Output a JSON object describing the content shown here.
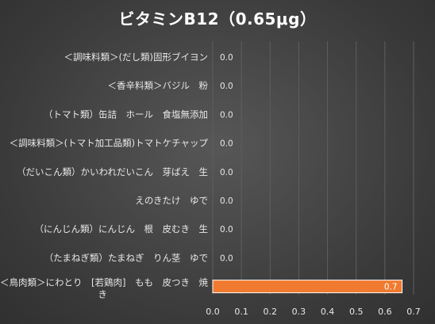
{
  "chart_data": {
    "type": "bar",
    "orientation": "horizontal",
    "title": "ビタミンB12（0.65μg）",
    "categories": [
      "＜調味料類＞(だし類)固形ブイヨン",
      "＜香辛料類＞バジル　粉",
      "（トマト類）缶詰　ホール　食塩無添加",
      "＜調味料類＞(トマト加工品類)トマトケチャップ",
      "（だいこん類）かいわれだいこん　芽ばえ　生",
      "えのきたけ　ゆで",
      "（にんじん類）にんじん　根　皮むき　生",
      "（たまねぎ類）たまねぎ　りん茎　ゆで",
      "＜鳥肉類＞にわとり　[若鶏肉]　もも　皮つき　焼き"
    ],
    "category_lines": [
      [
        "＜調味料類＞(だし類)固形ブイヨン"
      ],
      [
        "＜香辛料類＞バジル　粉"
      ],
      [
        "（トマト類）缶詰　ホール　食塩無添加"
      ],
      [
        "＜調味料類＞(トマト加工品類)トマトケチャップ"
      ],
      [
        "（だいこん類）かいわれだいこん　芽ばえ　生"
      ],
      [
        "えのきたけ　ゆで"
      ],
      [
        "（にんじん類）にんじん　根　皮むき　生"
      ],
      [
        "（たまねぎ類）たまねぎ　りん茎　ゆで"
      ],
      [
        "＜鳥肉類＞にわとり　[若鶏肉]　もも　皮つき　焼",
        "き"
      ]
    ],
    "values": [
      0,
      0,
      0,
      0,
      0,
      0,
      0,
      0,
      0.66
    ],
    "data_labels": [
      "0.0",
      "0.0",
      "0.0",
      "0.0",
      "0.0",
      "0.0",
      "0.0",
      "0.0",
      "0.7"
    ],
    "xlim": [
      0,
      0.7
    ],
    "xticks": [
      "0.0",
      "0.1",
      "0.2",
      "0.3",
      "0.4",
      "0.5",
      "0.6",
      "0.7"
    ],
    "xlabel": "",
    "ylabel": "",
    "grid": true,
    "colors": {
      "bar": "#f07a30",
      "bar_edge": "#ffffff",
      "gridline": "#5e5e5e",
      "text": "#e8e8e8"
    }
  }
}
